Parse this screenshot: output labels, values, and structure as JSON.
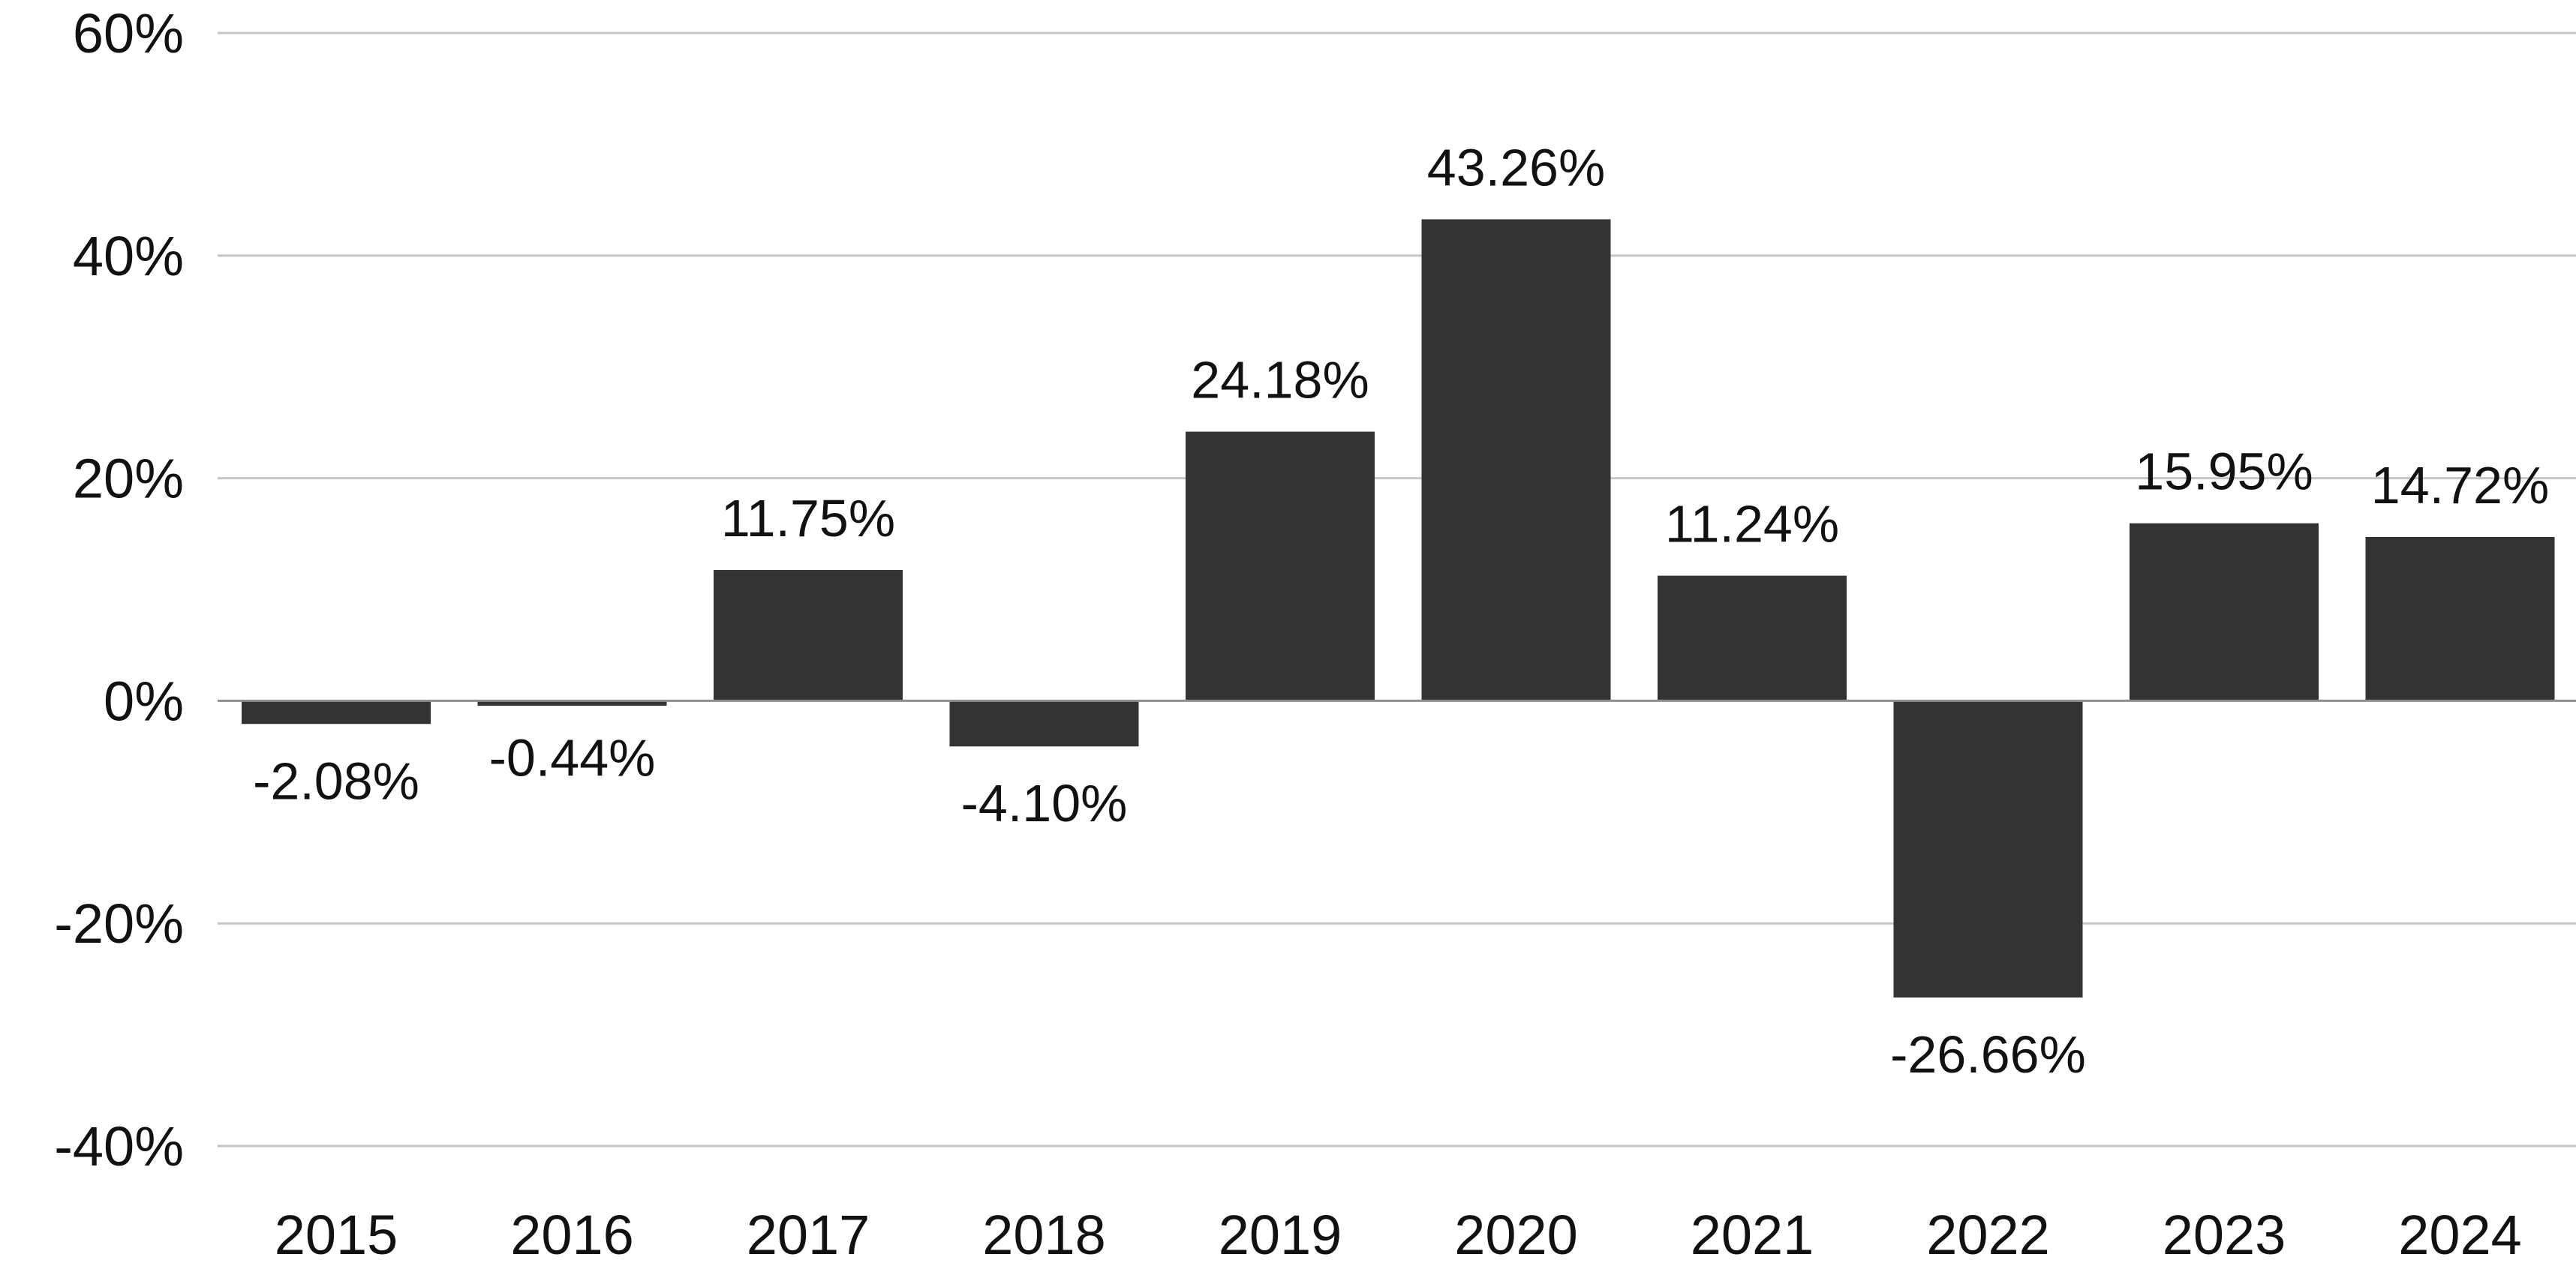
{
  "chart_data": {
    "type": "bar",
    "categories": [
      "2015",
      "2016",
      "2017",
      "2018",
      "2019",
      "2020",
      "2021",
      "2022",
      "2023",
      "2024"
    ],
    "values": [
      -2.08,
      -0.44,
      11.75,
      -4.1,
      24.18,
      43.26,
      11.24,
      -26.66,
      15.95,
      14.72
    ],
    "data_labels": [
      "-2.08%",
      "-0.44%",
      "11.75%",
      "-4.10%",
      "24.18%",
      "43.26%",
      "11.24%",
      "-26.66%",
      "15.95%",
      "14.72%"
    ],
    "y_ticks": [
      60,
      40,
      20,
      0,
      -20,
      -40
    ],
    "y_tick_labels": [
      "60%",
      "40%",
      "20%",
      "0%",
      "-20%",
      "-40%"
    ],
    "ylim": [
      -40,
      60
    ],
    "grid": true,
    "legend": "none",
    "title": "",
    "xlabel": "",
    "ylabel": "",
    "bar_color": "#333333"
  }
}
